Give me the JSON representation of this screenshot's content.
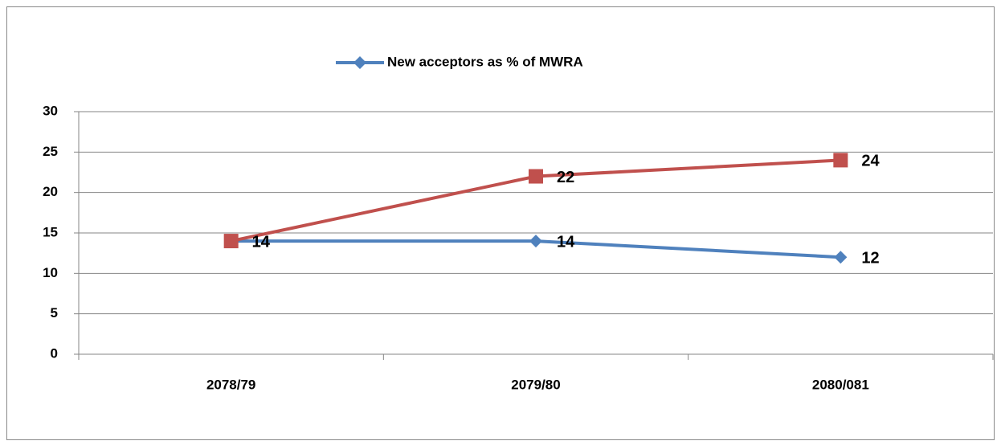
{
  "chart_data": {
    "type": "line",
    "categories": [
      "2078/79",
      "2079/80",
      "2080/081"
    ],
    "series": [
      {
        "name": "New acceptors as % of MWRA",
        "color": "#4f81bd",
        "marker": "diamond",
        "values": [
          14,
          14,
          12
        ]
      },
      {
        "color": "#c0504d",
        "marker": "square",
        "values": [
          14,
          22,
          24
        ]
      }
    ],
    "ylim": [
      0,
      30
    ],
    "yticks": [
      0,
      5,
      10,
      15,
      20,
      25,
      30
    ],
    "grid": true,
    "legend": "top"
  }
}
